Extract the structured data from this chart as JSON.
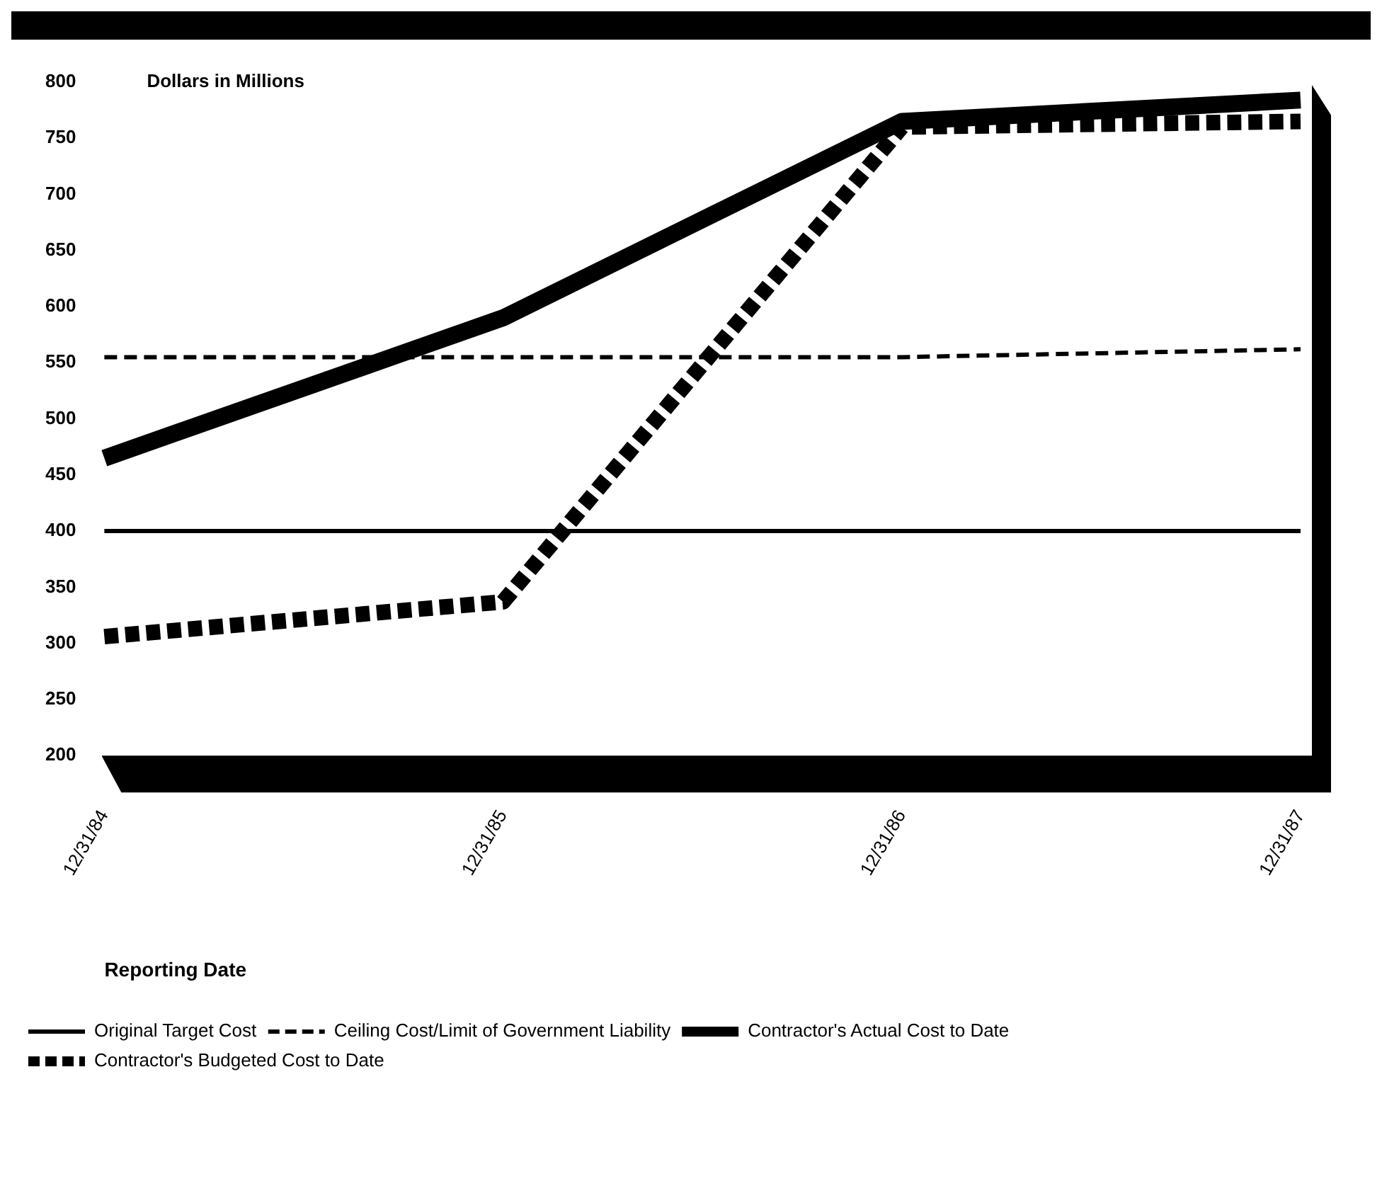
{
  "chart_data": {
    "type": "line",
    "ylabel": "Dollars in Millions",
    "xlabel": "Reporting Date",
    "categories": [
      "12/31/84",
      "12/31/85",
      "12/31/86",
      "12/31/87"
    ],
    "series": [
      {
        "name": "Original Target Cost",
        "color": "#000000",
        "line_style": "solid",
        "values": [
          400,
          400,
          400,
          400
        ]
      },
      {
        "name": "Ceiling Cost/Limit of Government Liability",
        "color": "#000000",
        "line_style": "dashed",
        "values": [
          555,
          555,
          555,
          562
        ]
      },
      {
        "name": "Contractor's Actual Cost to Date",
        "color": "#000000",
        "line_style": "solid",
        "values": [
          465,
          590,
          765,
          784
        ]
      },
      {
        "name": "Contractor's Budgeted Cost to Date",
        "color": "#000000",
        "line_style": "dashed",
        "values": [
          306,
          337,
          760,
          765
        ]
      }
    ],
    "ylim": [
      200,
      800
    ],
    "yticks": [
      200,
      250,
      300,
      350,
      400,
      450,
      500,
      550,
      600,
      650,
      700,
      750,
      800
    ],
    "grid": false,
    "legend": "bottom",
    "marker": "none"
  }
}
